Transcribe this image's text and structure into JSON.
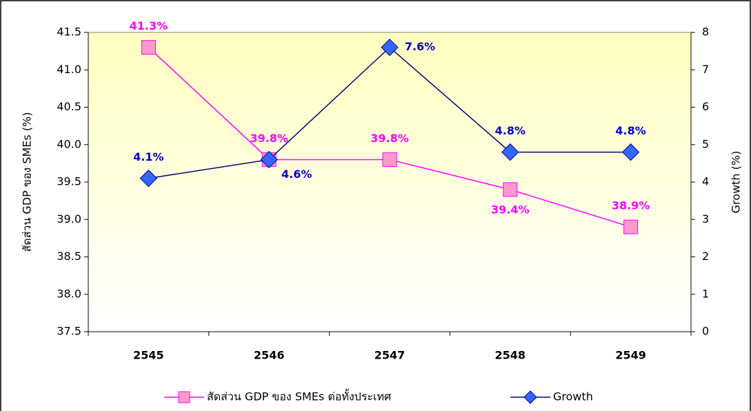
{
  "chart_data": {
    "type": "line",
    "categories": [
      "2545",
      "2546",
      "2547",
      "2548",
      "2549"
    ],
    "y_label": "สัดส่วน GDP ของ SMEs (%)",
    "y2_label": "Growth (%)",
    "ylim": [
      37.5,
      41.5
    ],
    "yticks": [
      37.5,
      {
        "value": 38,
        "label": "38.0"
      },
      38.5,
      {
        "value": 39,
        "label": "39.0"
      },
      39.5,
      {
        "value": 40,
        "label": "40.0"
      },
      40.5,
      {
        "value": 41,
        "label": "41.0"
      },
      41.5
    ],
    "y2lim": [
      0,
      8
    ],
    "y2ticks": [
      0,
      1,
      2,
      3,
      4,
      5,
      6,
      7,
      8
    ],
    "grid": false,
    "legend": "bottom",
    "series": [
      {
        "name": "สัดส่วน GDP ของ SMEs ต่อทั้งประเทศ",
        "color": "#ff00ff",
        "marker_color": "#ff99cc",
        "values": [
          41.3,
          39.8,
          39.8,
          39.4,
          38.9
        ],
        "value_labels": [
          "41.3%",
          "39.8%",
          "39.8%",
          "39.4%",
          "38.9%"
        ]
      },
      {
        "name": "Growth",
        "color": "#000080",
        "marker_color": "#3366ff",
        "axis": "y2",
        "values": [
          4.1,
          4.6,
          7.6,
          4.8,
          4.8
        ],
        "value_labels": [
          "4.1%",
          "4.6%",
          "7.6%",
          "4.8%",
          "4.8%"
        ]
      }
    ]
  }
}
